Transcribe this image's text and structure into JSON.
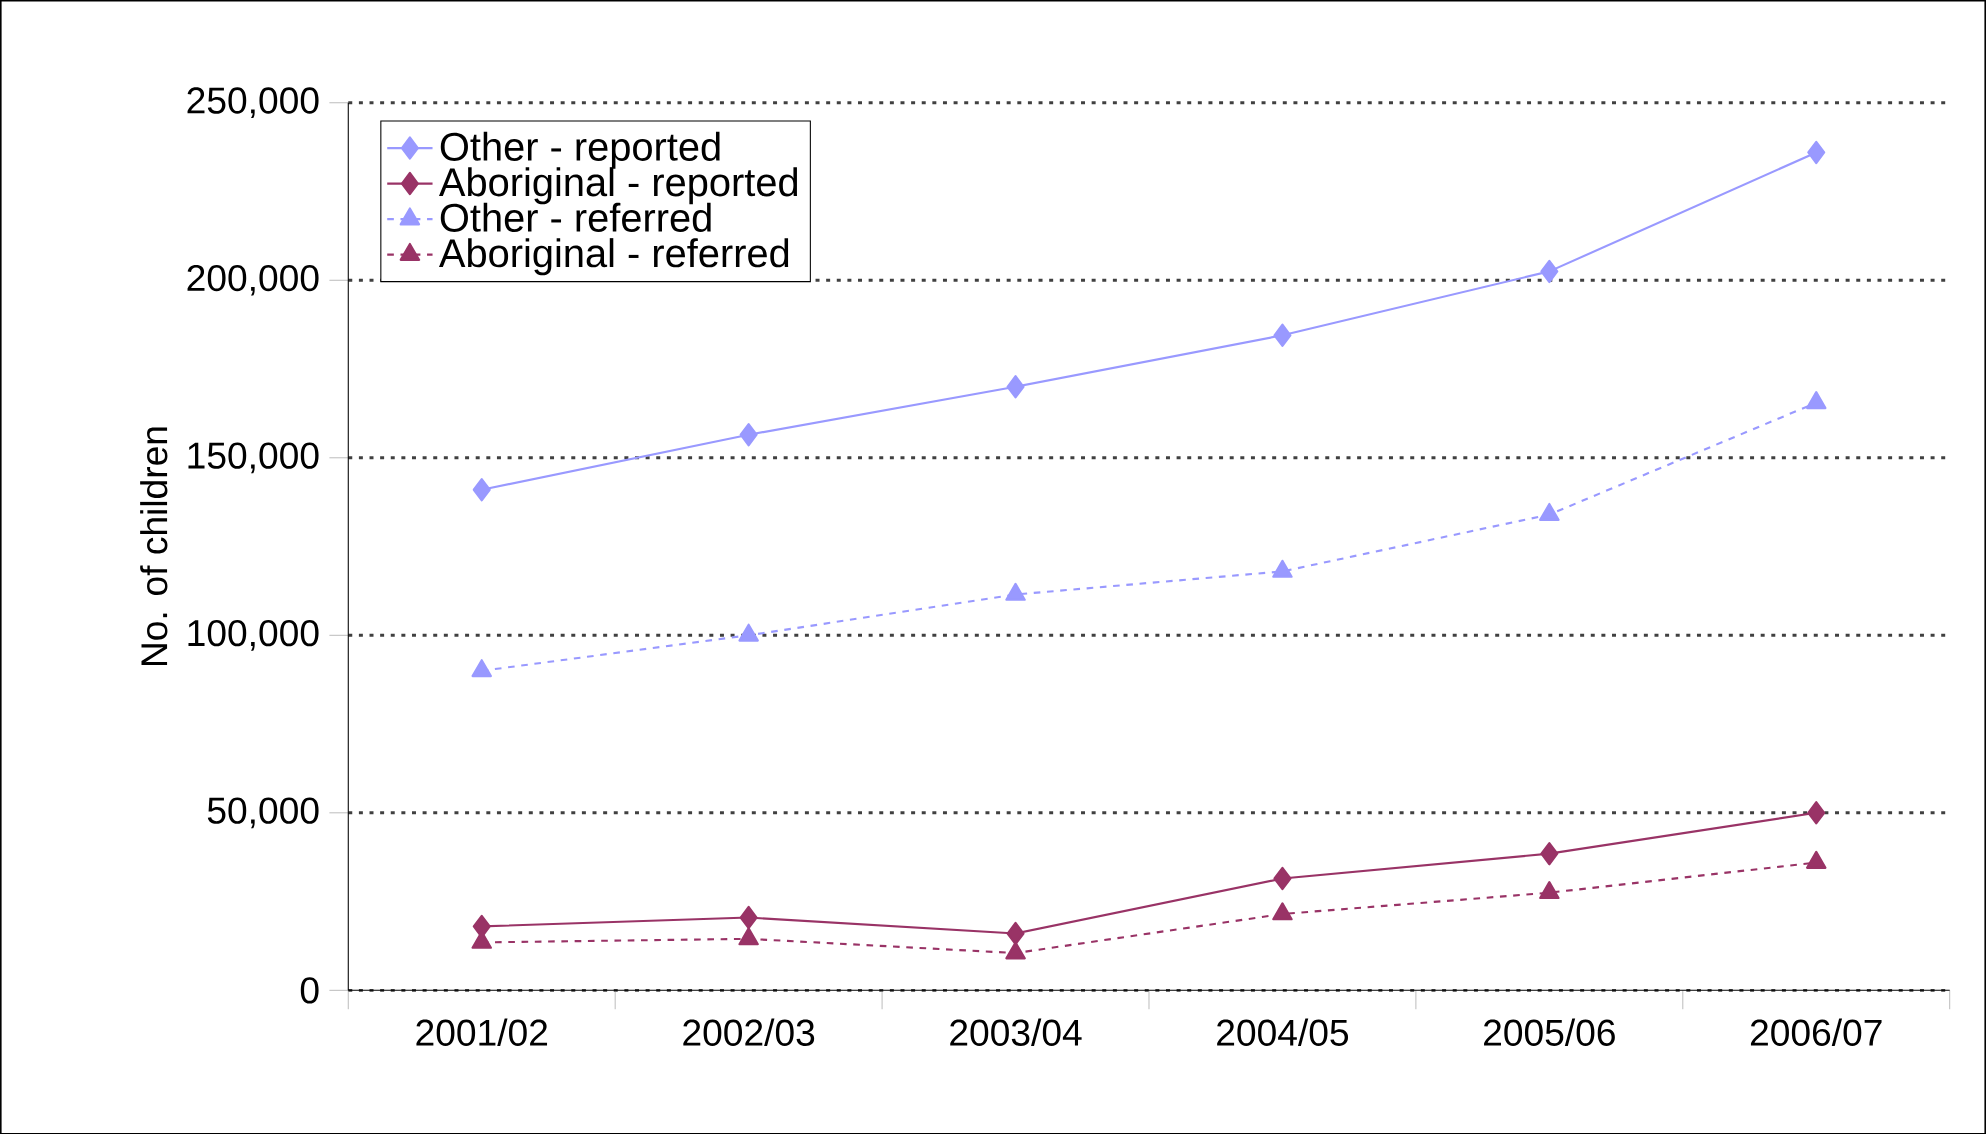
{
  "chart_data": {
    "type": "line",
    "ylabel": "No. of children",
    "categories": [
      "2001/02",
      "2002/03",
      "2003/04",
      "2004/05",
      "2005/06",
      "2006/07"
    ],
    "series": [
      {
        "name": "Other - reported",
        "color": "#9999ff",
        "marker": "diamond",
        "line_style": "solid",
        "values": [
          141000,
          156500,
          170000,
          184500,
          202500,
          236000
        ]
      },
      {
        "name": "Aboriginal - reported",
        "color": "#993366",
        "marker": "diamond",
        "line_style": "solid",
        "values": [
          18000,
          20500,
          16000,
          31500,
          38500,
          50000
        ]
      },
      {
        "name": "Other - referred",
        "color": "#9999ff",
        "marker": "triangle",
        "line_style": "dashed",
        "values": [
          90000,
          100000,
          111500,
          118000,
          134000,
          165500
        ]
      },
      {
        "name": "Aboriginal - referred",
        "color": "#993366",
        "marker": "triangle",
        "line_style": "dashed",
        "values": [
          13500,
          14500,
          10500,
          21500,
          27500,
          36000
        ]
      }
    ],
    "ylim": [
      0,
      250000
    ],
    "yticks": [
      {
        "value": 0,
        "label": "0"
      },
      {
        "value": 50000,
        "label": "50,000"
      },
      {
        "value": 100000,
        "label": "100,000"
      },
      {
        "value": 150000,
        "label": "150,000"
      },
      {
        "value": 200000,
        "label": "200,000"
      },
      {
        "value": 250000,
        "label": "250,000"
      }
    ],
    "grid": "y",
    "legend": "top left"
  }
}
